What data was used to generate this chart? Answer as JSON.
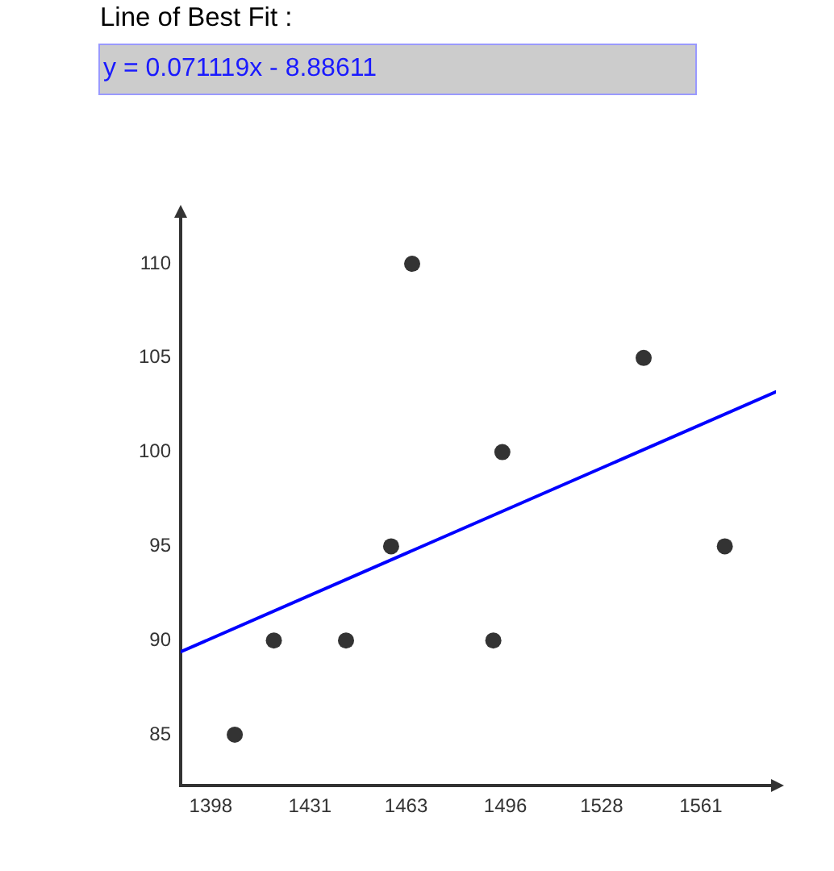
{
  "chart_data": {
    "type": "scatter",
    "title": "Line of Best Fit :",
    "annotations": [
      "y = 0.071119x - 8.88611"
    ],
    "xlim": [
      1388,
      1586
    ],
    "xticks": [
      1398,
      1431,
      1463,
      1496,
      1528,
      1561
    ],
    "ylim": [
      82.3,
      112.7
    ],
    "yticks": [
      85,
      90,
      95,
      100,
      105,
      110
    ],
    "marker": "circle",
    "series": [
      {
        "color": "#333333",
        "x": [
          1406,
          1419,
          1443,
          1458,
          1465,
          1492,
          1495,
          1542,
          1569
        ],
        "values": [
          85,
          90,
          90,
          95,
          110,
          90,
          100,
          105,
          95
        ]
      },
      {
        "type": "line",
        "color": "#0000ff",
        "marker": "none",
        "x": [
          1388,
          1586
        ],
        "values": [
          89.4,
          103.2
        ]
      }
    ]
  }
}
